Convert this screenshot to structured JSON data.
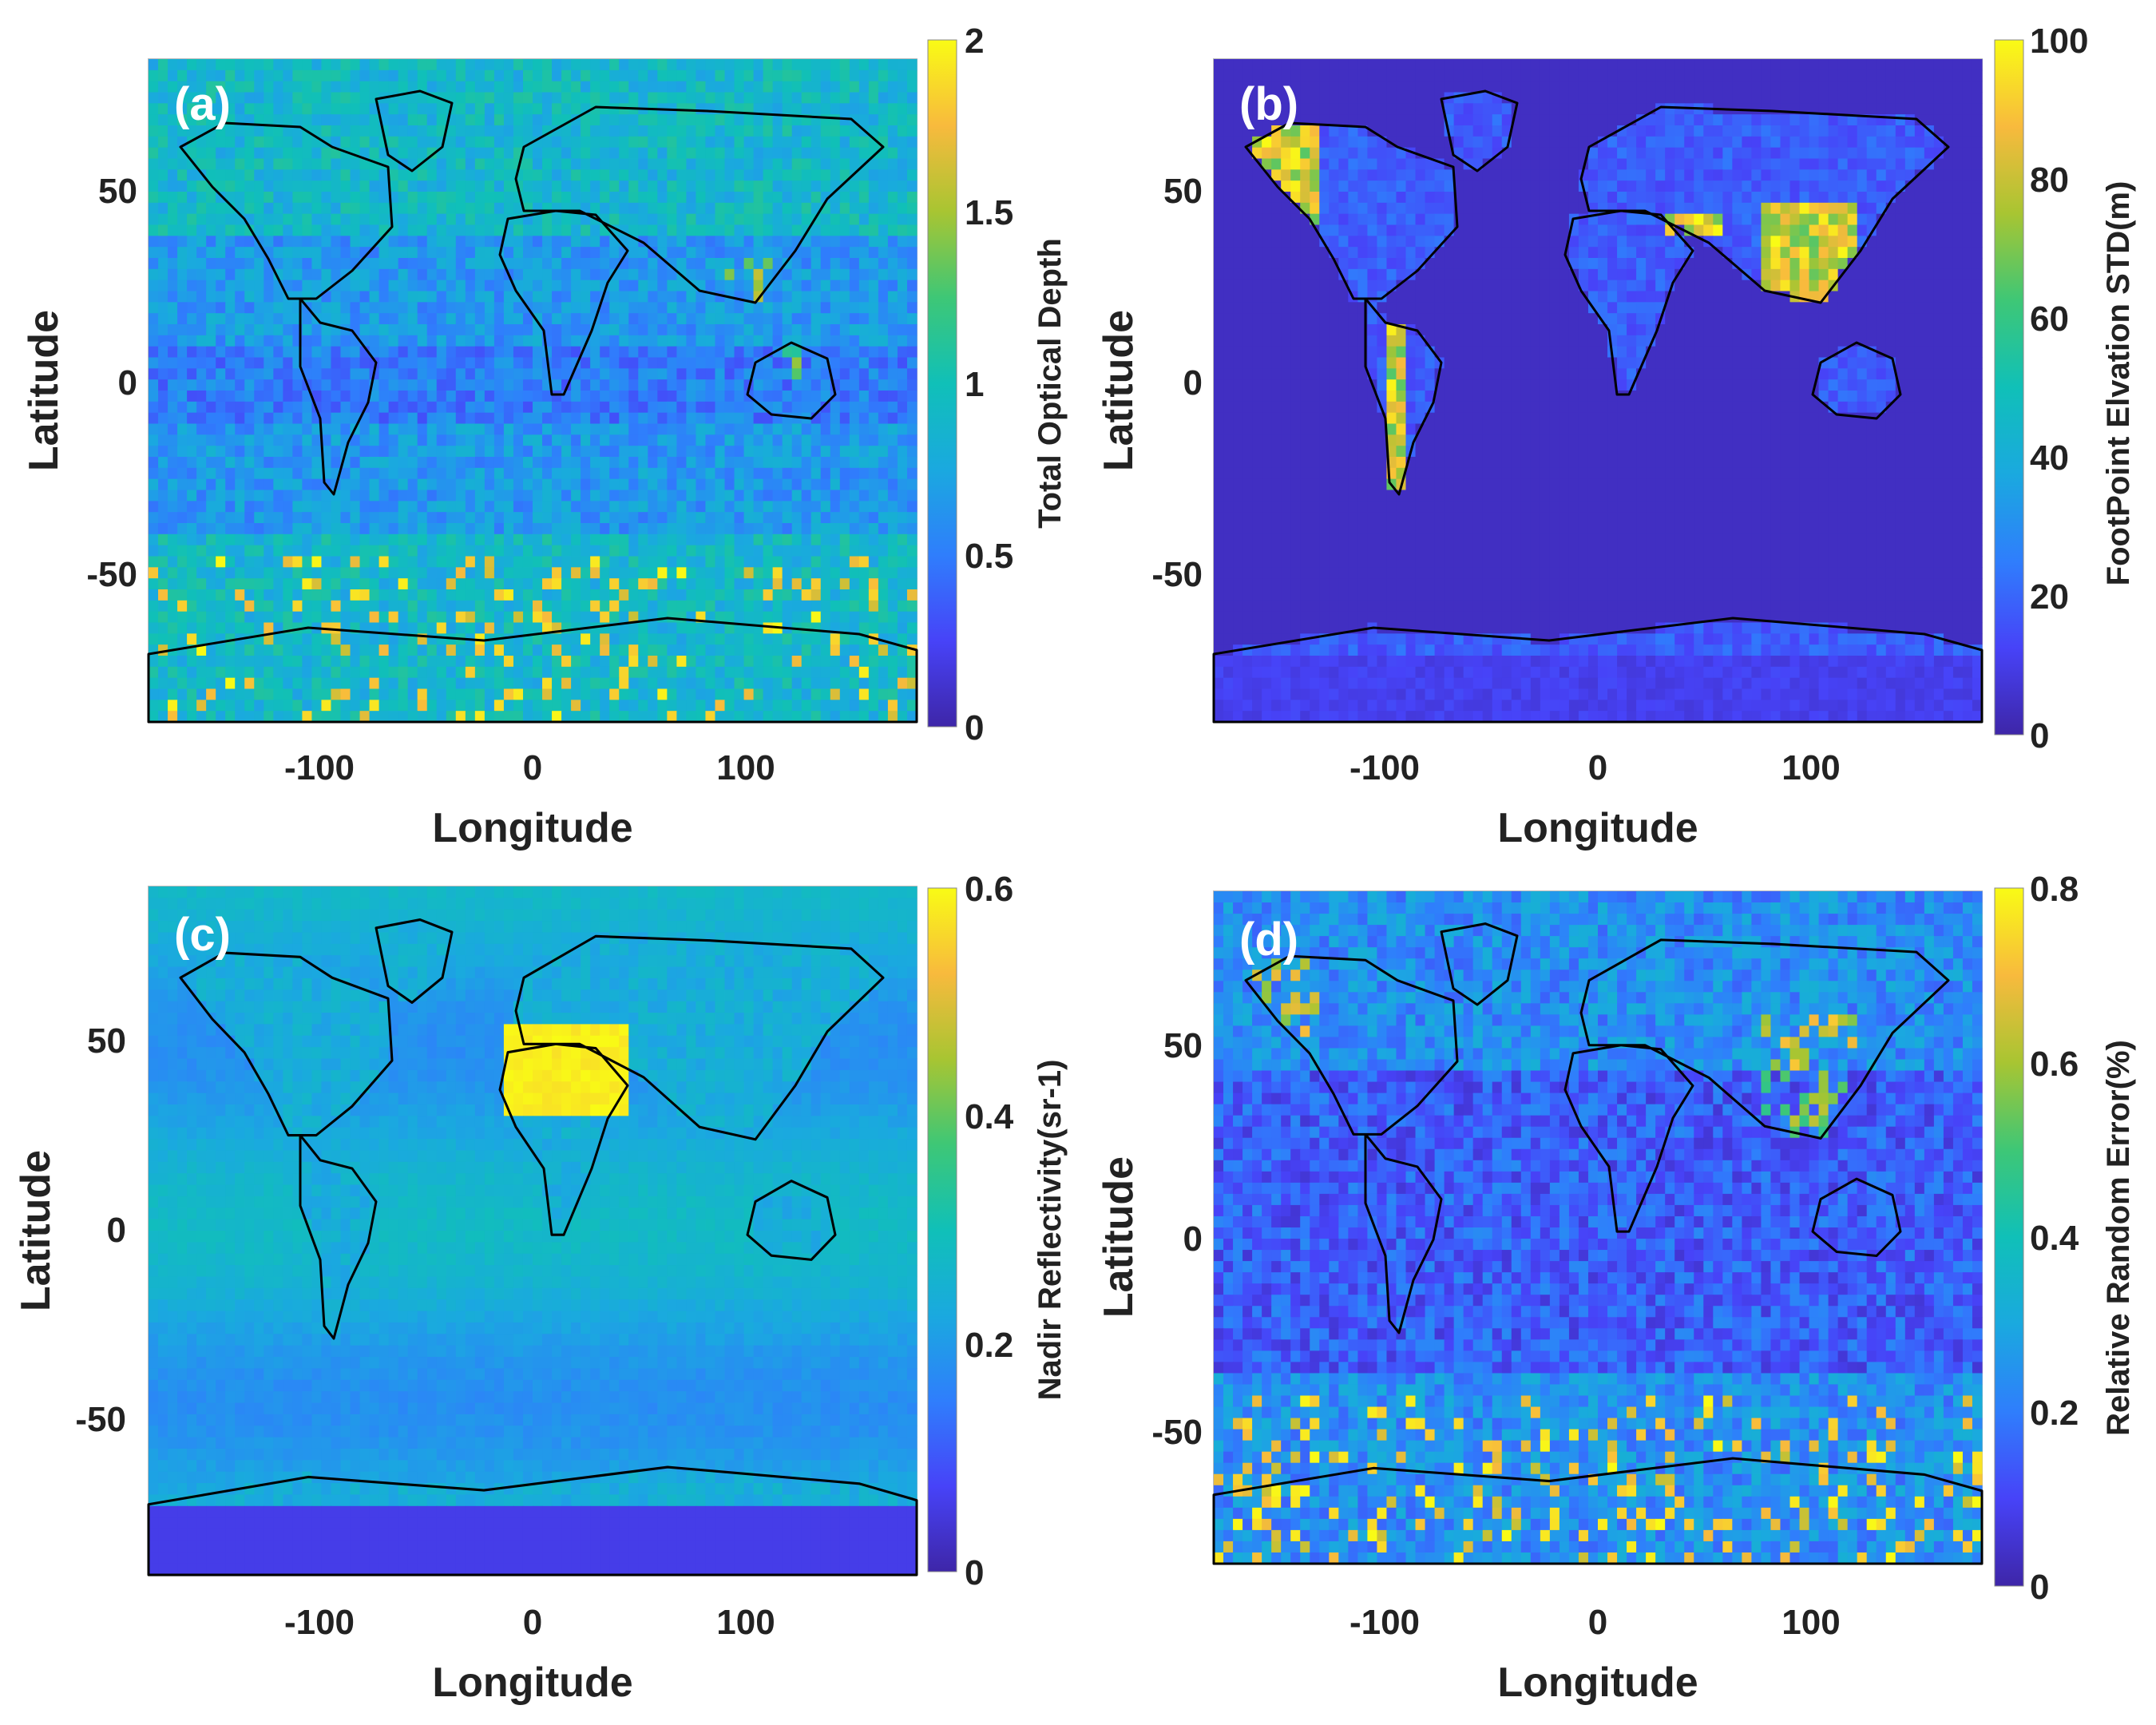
{
  "colors": {
    "colormap": [
      "#3e26a8",
      "#4743f8",
      "#2f7efc",
      "#1aa9df",
      "#10c0b8",
      "#3ec776",
      "#a8c532",
      "#f8ba3d",
      "#f9fb15"
    ],
    "coastline": "#000000"
  },
  "chart_data": [
    {
      "type": "heatmap",
      "panel_label": "(a)",
      "xlabel": "Longitude",
      "ylabel": "Latitude",
      "xticks": [
        -100,
        0,
        100
      ],
      "yticks": [
        50,
        0,
        -50
      ],
      "xlim": [
        -180,
        180
      ],
      "ylim": [
        -88,
        85
      ],
      "colorbar": {
        "label": "Total Optical Depth",
        "ticks": [
          "2",
          "1.5",
          "1",
          "0.5",
          "0"
        ],
        "range": [
          0,
          2
        ]
      },
      "baseline_fraction": 0.32,
      "noise": 0.2
    },
    {
      "type": "heatmap",
      "panel_label": "(b)",
      "xlabel": "Longitude",
      "ylabel": "Latitude",
      "xticks": [
        -100,
        0,
        100
      ],
      "yticks": [
        50,
        0,
        -50
      ],
      "xlim": [
        -180,
        180
      ],
      "ylim": [
        -88,
        85
      ],
      "colorbar": {
        "label": "FootPoint Elvation STD(m)",
        "ticks": [
          "100",
          "80",
          "60",
          "40",
          "20",
          "0"
        ],
        "range": [
          0,
          100
        ]
      },
      "baseline_fraction": 0.04,
      "noise": 0.0
    },
    {
      "type": "heatmap",
      "panel_label": "(c)",
      "xlabel": "Longitude",
      "ylabel": "Latitude",
      "xticks": [
        -100,
        0,
        100
      ],
      "yticks": [
        50,
        0,
        -50
      ],
      "xlim": [
        -180,
        180
      ],
      "ylim": [
        -88,
        85
      ],
      "colorbar": {
        "label": "Nadir Reflectivity(sr-1)",
        "ticks": [
          "0.6",
          "0.4",
          "0.2",
          "0"
        ],
        "range": [
          0,
          0.6
        ]
      },
      "baseline_fraction": 0.38,
      "noise": 0.05
    },
    {
      "type": "heatmap",
      "panel_label": "(d)",
      "xlabel": "Longitude",
      "ylabel": "Latitude",
      "xticks": [
        -100,
        0,
        100
      ],
      "yticks": [
        50,
        0,
        -50
      ],
      "xlim": [
        -180,
        180
      ],
      "ylim": [
        -88,
        85
      ],
      "colorbar": {
        "label": "Relative Random Error(%)",
        "ticks": [
          "0.8",
          "0.6",
          "0.4",
          "0.2",
          "0"
        ],
        "range": [
          0,
          0.8
        ]
      },
      "baseline_fraction": 0.18,
      "noise": 0.22
    }
  ]
}
